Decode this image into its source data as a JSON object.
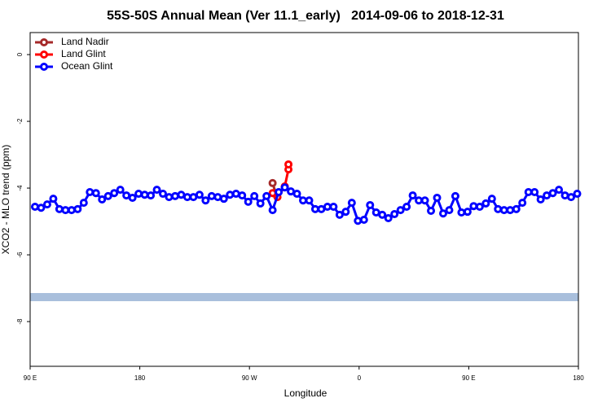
{
  "chart_data": {
    "type": "line",
    "title": "55S-50S Annual Mean (Ver 11.1_early)   2014-09-06 to 2018-12-31",
    "x_label": "Longitude",
    "y_label": "XCO2 - MLO trend (ppm)",
    "xlim": [
      90,
      540
    ],
    "ylim": [
      -9.34,
      0.66
    ],
    "xticks": [
      {
        "value": 90,
        "label": "90 E"
      },
      180,
      {
        "value": 270,
        "label": "90 W"
      },
      {
        "value": 360,
        "label": "0"
      },
      {
        "value": 450,
        "label": "90 E"
      },
      {
        "value": 540,
        "label": "180"
      }
    ],
    "yticks": [
      -8,
      -6,
      -4,
      -2,
      0
    ],
    "legend": "top-left",
    "series": [
      {
        "name": "Land Nadir",
        "color": "#a52a2a",
        "x": [
          289,
          292
        ],
        "values": [
          -3.85,
          -4.2
        ]
      },
      {
        "name": "Land Glint",
        "color": "#ff0000",
        "x": [
          289,
          293,
          299,
          302,
          302
        ],
        "values": [
          -4.15,
          -4.27,
          -3.95,
          -3.44,
          -3.29
        ]
      },
      {
        "name": "Ocean Glint",
        "color": "#0000ff",
        "x": [
          94,
          99,
          104,
          109,
          114,
          119,
          124,
          129,
          134,
          139,
          144,
          149,
          154,
          159,
          164,
          169,
          174,
          179,
          184,
          189,
          194,
          199,
          204,
          209,
          214,
          219,
          224,
          229,
          234,
          239,
          244,
          249,
          254,
          259,
          264,
          269,
          274,
          279,
          284,
          289,
          294,
          299,
          304,
          309,
          314,
          319,
          324,
          329,
          334,
          339,
          344,
          349,
          354,
          359,
          364,
          369,
          374,
          379,
          384,
          389,
          394,
          399,
          404,
          409,
          414,
          419,
          424,
          429,
          434,
          439,
          444,
          449,
          454,
          459,
          464,
          469,
          474,
          479,
          484,
          489,
          494,
          499,
          504,
          509,
          514,
          519,
          524,
          529,
          534,
          539
        ],
        "values": [
          -4.56,
          -4.59,
          -4.49,
          -4.32,
          -4.63,
          -4.66,
          -4.66,
          -4.63,
          -4.44,
          -4.12,
          -4.15,
          -4.34,
          -4.24,
          -4.15,
          -4.05,
          -4.22,
          -4.29,
          -4.17,
          -4.2,
          -4.22,
          -4.05,
          -4.17,
          -4.27,
          -4.24,
          -4.2,
          -4.27,
          -4.27,
          -4.2,
          -4.37,
          -4.24,
          -4.27,
          -4.32,
          -4.2,
          -4.17,
          -4.22,
          -4.41,
          -4.24,
          -4.46,
          -4.24,
          -4.66,
          -4.12,
          -3.98,
          -4.1,
          -4.17,
          -4.37,
          -4.37,
          -4.63,
          -4.63,
          -4.56,
          -4.56,
          -4.8,
          -4.71,
          -4.44,
          -4.98,
          -4.95,
          -4.51,
          -4.73,
          -4.8,
          -4.9,
          -4.78,
          -4.66,
          -4.56,
          -4.22,
          -4.37,
          -4.37,
          -4.68,
          -4.29,
          -4.76,
          -4.66,
          -4.24,
          -4.73,
          -4.71,
          -4.54,
          -4.56,
          -4.46,
          -4.32,
          -4.63,
          -4.66,
          -4.66,
          -4.63,
          -4.44,
          -4.12,
          -4.12,
          -4.34,
          -4.22,
          -4.15,
          -4.05,
          -4.22,
          -4.27,
          -4.17
        ]
      }
    ]
  }
}
